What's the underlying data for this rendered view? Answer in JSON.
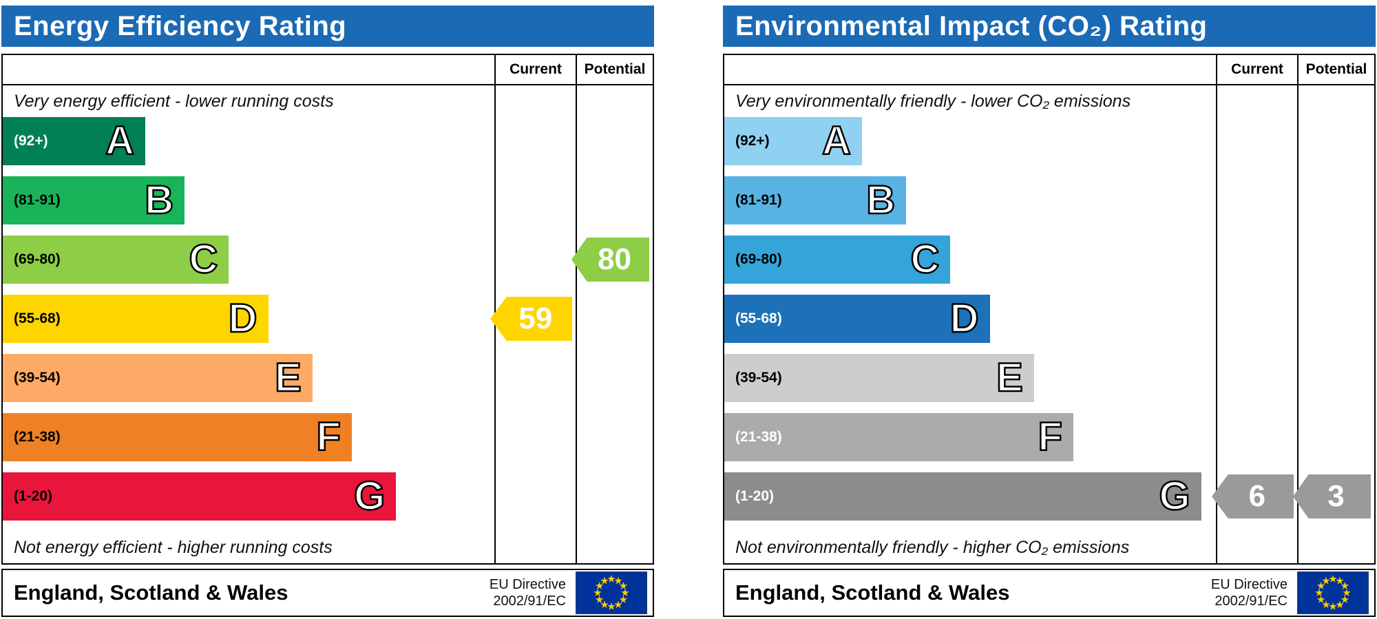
{
  "colors": {
    "header_blue": "#1b6ab5",
    "flag_blue": "#003399",
    "flag_star_yellow": "#ffcc00"
  },
  "panels": [
    {
      "title": "Energy Efficiency Rating",
      "current_label": "Current",
      "potential_label": "Potential",
      "top_note": "Very energy efficient - lower running costs",
      "bottom_note": "Not energy efficient - higher running costs",
      "bands": [
        {
          "range": "(92+)",
          "letter": "A",
          "color": "#008054",
          "label_color": "#ffffff",
          "width_pct": 29
        },
        {
          "range": "(81-91)",
          "letter": "B",
          "color": "#19b459",
          "label_color": "#000000",
          "width_pct": 37
        },
        {
          "range": "(69-80)",
          "letter": "C",
          "color": "#8dce46",
          "label_color": "#000000",
          "width_pct": 46
        },
        {
          "range": "(55-68)",
          "letter": "D",
          "color": "#ffd500",
          "label_color": "#000000",
          "width_pct": 54
        },
        {
          "range": "(39-54)",
          "letter": "E",
          "color": "#fcaa65",
          "label_color": "#000000",
          "width_pct": 63
        },
        {
          "range": "(21-38)",
          "letter": "F",
          "color": "#ef8023",
          "label_color": "#000000",
          "width_pct": 71
        },
        {
          "range": "(1-20)",
          "letter": "G",
          "color": "#e9153b",
          "label_color": "#000000",
          "width_pct": 80
        }
      ],
      "current": {
        "value": "59",
        "band_index": 3,
        "color": "#ffd500"
      },
      "potential": {
        "value": "80",
        "band_index": 2,
        "color": "#8dce46"
      },
      "footer": {
        "region": "England, Scotland & Wales",
        "directive_line1": "EU Directive",
        "directive_line2": "2002/91/EC"
      }
    },
    {
      "title": "Environmental Impact (CO₂) Rating",
      "current_label": "Current",
      "potential_label": "Potential",
      "top_note": "Very environmentally friendly - lower CO₂ emissions",
      "bottom_note": "Not environmentally friendly - higher CO₂ emissions",
      "bands": [
        {
          "range": "(92+)",
          "letter": "A",
          "color": "#90d1f1",
          "label_color": "#000000",
          "width_pct": 28
        },
        {
          "range": "(81-91)",
          "letter": "B",
          "color": "#58b2e2",
          "label_color": "#000000",
          "width_pct": 37
        },
        {
          "range": "(69-80)",
          "letter": "C",
          "color": "#35a4da",
          "label_color": "#000000",
          "width_pct": 46
        },
        {
          "range": "(55-68)",
          "letter": "D",
          "color": "#1c71b9",
          "label_color": "#ffffff",
          "width_pct": 54
        },
        {
          "range": "(39-54)",
          "letter": "E",
          "color": "#cdcdcd",
          "label_color": "#000000",
          "width_pct": 63
        },
        {
          "range": "(21-38)",
          "letter": "F",
          "color": "#ababab",
          "label_color": "#ffffff",
          "width_pct": 71
        },
        {
          "range": "(1-20)",
          "letter": "G",
          "color": "#8c8c8c",
          "label_color": "#ffffff",
          "width_pct": 97
        }
      ],
      "current": {
        "value": "6",
        "band_index": 6,
        "color": "#9a9a9a"
      },
      "potential": {
        "value": "3",
        "band_index": 6,
        "color": "#9a9a9a"
      },
      "footer": {
        "region": "England, Scotland & Wales",
        "directive_line1": "EU Directive",
        "directive_line2": "2002/91/EC"
      }
    }
  ],
  "chart_data": [
    {
      "type": "bar",
      "title": "Energy Efficiency Rating",
      "categories": [
        "A (92+)",
        "B (81-91)",
        "C (69-80)",
        "D (55-68)",
        "E (39-54)",
        "F (21-38)",
        "G (1-20)"
      ],
      "series": [
        {
          "name": "Current",
          "values": [
            null,
            null,
            null,
            59,
            null,
            null,
            null
          ]
        },
        {
          "name": "Potential",
          "values": [
            null,
            null,
            80,
            null,
            null,
            null,
            null
          ]
        }
      ],
      "current": 59,
      "current_band": "D",
      "potential": 80,
      "potential_band": "C",
      "band_colors": [
        "#008054",
        "#19b459",
        "#8dce46",
        "#ffd500",
        "#fcaa65",
        "#ef8023",
        "#e9153b"
      ],
      "annotations": [
        "Very energy efficient - lower running costs",
        "Not energy efficient - higher running costs",
        "England, Scotland & Wales",
        "EU Directive 2002/91/EC"
      ]
    },
    {
      "type": "bar",
      "title": "Environmental Impact (CO₂) Rating",
      "categories": [
        "A (92+)",
        "B (81-91)",
        "C (69-80)",
        "D (55-68)",
        "E (39-54)",
        "F (21-38)",
        "G (1-20)"
      ],
      "series": [
        {
          "name": "Current",
          "values": [
            null,
            null,
            null,
            null,
            null,
            null,
            6
          ]
        },
        {
          "name": "Potential",
          "values": [
            null,
            null,
            null,
            null,
            null,
            null,
            3
          ]
        }
      ],
      "current": 6,
      "current_band": "G",
      "potential": 3,
      "potential_band": "G",
      "band_colors": [
        "#90d1f1",
        "#58b2e2",
        "#35a4da",
        "#1c71b9",
        "#cdcdcd",
        "#ababab",
        "#8c8c8c"
      ],
      "annotations": [
        "Very environmentally friendly - lower CO₂ emissions",
        "Not environmentally friendly - higher CO₂ emissions",
        "England, Scotland & Wales",
        "EU Directive 2002/91/EC"
      ]
    }
  ]
}
